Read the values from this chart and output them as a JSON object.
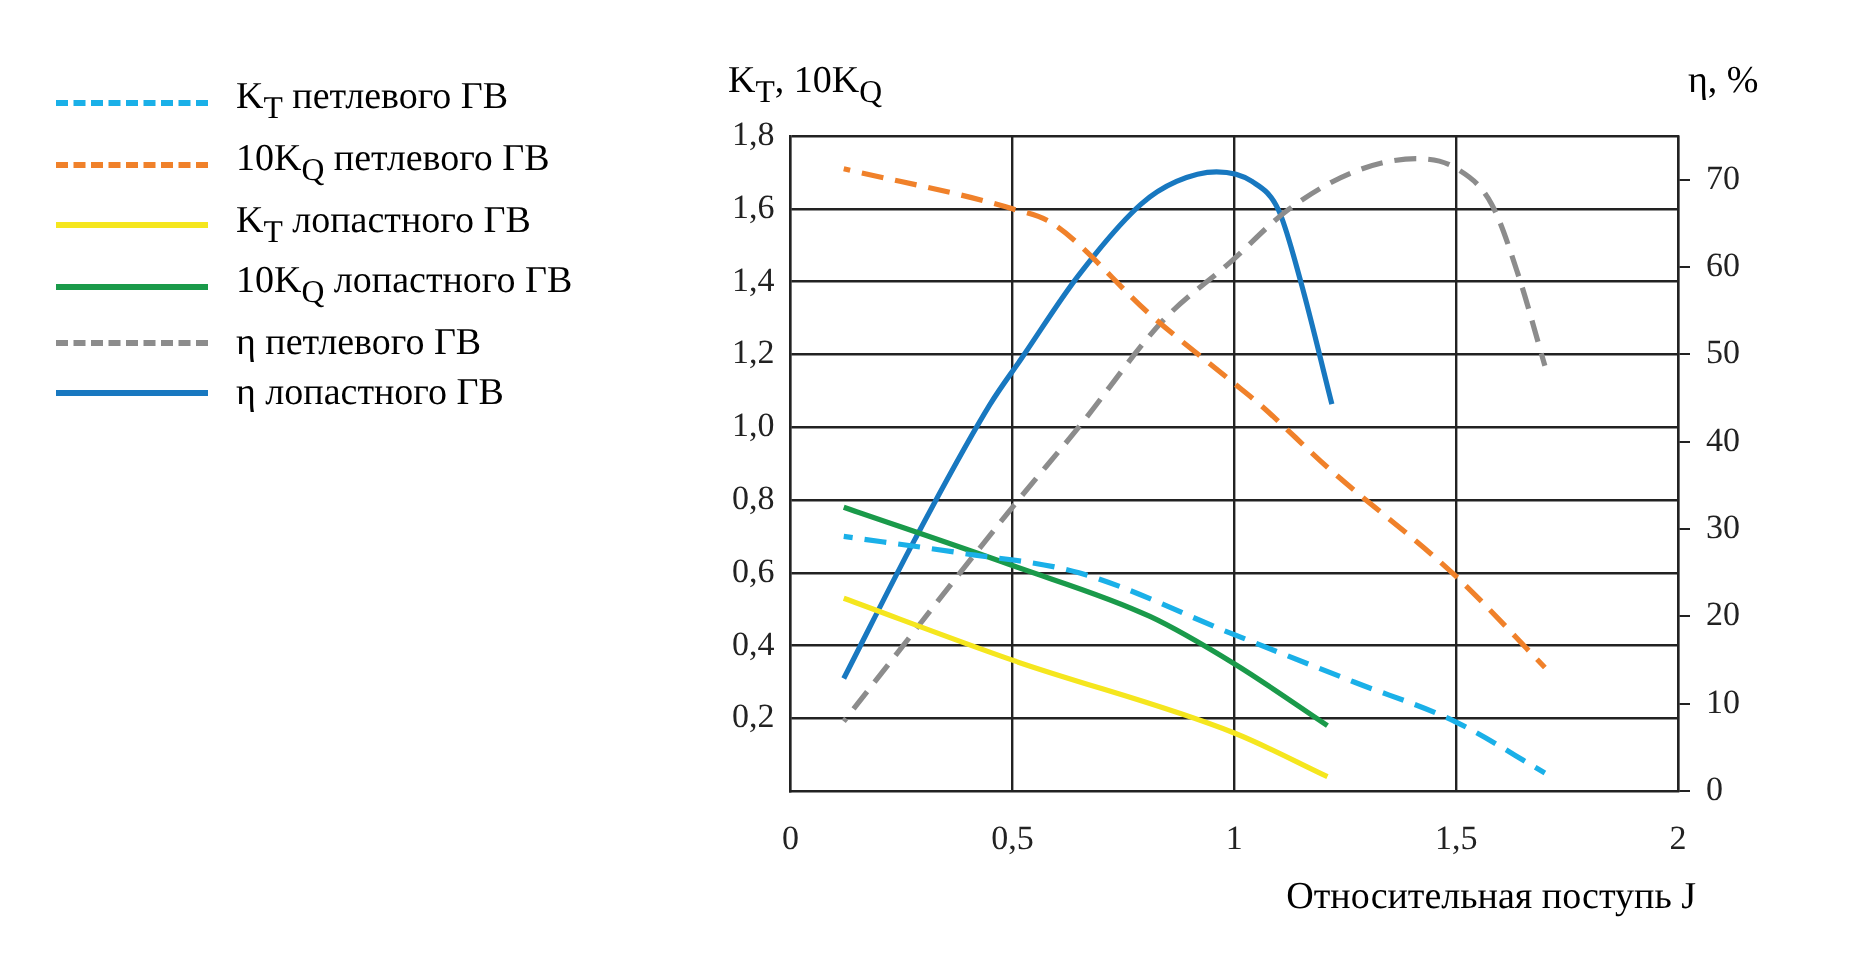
{
  "chart_data": {
    "type": "line",
    "xlabel": "Относительная поступь J",
    "ylabel": "K$_{T}$, 10K$_{Q}$",
    "y2label": "η, %",
    "xlim": [
      0,
      2
    ],
    "xticks": [
      0,
      {
        "value": 0.5,
        "label": "0,5"
      },
      1,
      {
        "value": 1.5,
        "label": "1,5"
      },
      2
    ],
    "ylim": [
      0,
      1.8
    ],
    "yticks": [
      {
        "value": 0.2,
        "label": "0,2"
      },
      {
        "value": 0.4,
        "label": "0,4"
      },
      {
        "value": 0.6,
        "label": "0,6"
      },
      {
        "value": 0.8,
        "label": "0,8"
      },
      {
        "value": 1.0,
        "label": "1,0"
      },
      {
        "value": 1.2,
        "label": "1,2"
      },
      {
        "value": 1.4,
        "label": "1,4"
      },
      {
        "value": 1.6,
        "label": "1,6"
      },
      {
        "value": 1.8,
        "label": "1,8"
      }
    ],
    "y2lim": [
      0,
      75
    ],
    "y2ticks": [
      0,
      10,
      20,
      30,
      40,
      50,
      60,
      70
    ],
    "grid": true,
    "legend": "left",
    "marker": "none",
    "series": [
      {
        "name": "K$_{T}$ петлевого ГВ",
        "color": "#1ab0e8",
        "line_style": "dashed",
        "x": [
          0.12,
          0.38,
          0.65,
          1.0,
          1.27,
          1.5,
          1.7
        ],
        "values": [
          0.7,
          0.655,
          0.6,
          0.43,
          0.3,
          0.19,
          0.05
        ]
      },
      {
        "name": "10K$_{Q}$ петлевого ГВ",
        "color": "#f0812a",
        "line_style": "dashed",
        "x": [
          0.12,
          0.5,
          0.59,
          0.81,
          0.99,
          1.06,
          1.21,
          1.5,
          1.7
        ],
        "values": [
          1.71,
          1.6,
          1.56,
          1.31,
          1.13,
          1.06,
          0.89,
          0.59,
          0.34
        ]
      },
      {
        "name": "K$_{T}$ лопастного ГВ",
        "color": "#f5e61e",
        "line_style": "solid",
        "x": [
          0.12,
          0.5,
          1.0,
          1.21
        ],
        "values": [
          0.53,
          0.36,
          0.16,
          0.04
        ]
      },
      {
        "name": "10K$_{Q}$ лопастного ГВ",
        "color": "#1a9a4a",
        "line_style": "solid",
        "x": [
          0.12,
          0.5,
          0.81,
          1.0,
          1.21
        ],
        "values": [
          0.78,
          0.62,
          0.48,
          0.35,
          0.18
        ]
      },
      {
        "name": "η петлевого ГВ",
        "color": "#8c8c8c",
        "line_style": "dashed",
        "axis": "y2",
        "x": [
          0.12,
          0.5,
          0.65,
          0.84,
          0.99,
          1.12,
          1.27,
          1.41,
          1.5,
          1.58,
          1.64,
          1.7
        ],
        "values": [
          8,
          32.5,
          41.7,
          53.9,
          60.5,
          66.5,
          70.9,
          72.4,
          71.3,
          67.2,
          59.1,
          48.7
        ]
      },
      {
        "name": "η лопастного ГВ",
        "color": "#1878c0",
        "line_style": "solid",
        "axis": "y2",
        "x": [
          0.12,
          0.28,
          0.45,
          0.52,
          0.65,
          0.79,
          0.87,
          0.96,
          1.04,
          1.1,
          1.15,
          1.22
        ],
        "values": [
          12.9,
          28.8,
          44.3,
          49.5,
          59.1,
          67.2,
          69.8,
          70.9,
          69.8,
          66.5,
          58.3,
          44.3
        ]
      }
    ]
  }
}
